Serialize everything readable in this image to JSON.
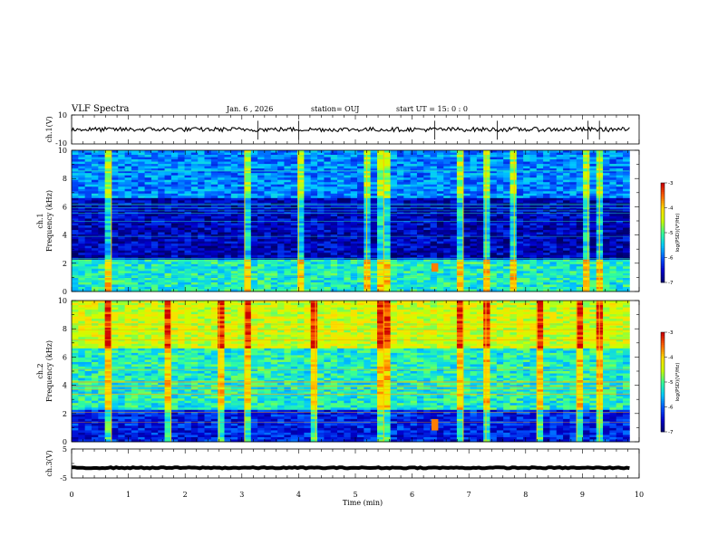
{
  "header": {
    "title": "VLF Spectra",
    "date": "Jan. 6 , 2026",
    "station": "station= OUJ",
    "start": "start UT = 15: 0 : 0"
  },
  "chart_data": [
    {
      "type": "line",
      "name": "ch1-waveform",
      "ylabel": "ch.1(V)",
      "ylim": [
        -10,
        10
      ],
      "ytick_labels": [
        "10",
        "-10"
      ],
      "xlim": [
        0,
        10
      ],
      "x_extent": [
        0,
        9.83
      ],
      "mean": 0,
      "approx_amplitude": 1.5,
      "spike_times": [
        3.28,
        4.0,
        6.4,
        7.5,
        9.1,
        9.3
      ]
    },
    {
      "type": "heatmap",
      "name": "ch1-spectrogram",
      "ylabel": "ch.1\nFrequency (kHz)",
      "ylim": [
        0,
        10
      ],
      "ytick_labels": [
        "0",
        "2",
        "4",
        "6",
        "8",
        "10"
      ],
      "xlim": [
        0,
        10
      ],
      "x_extent": [
        0,
        9.83
      ],
      "colorbar_label": "log(PSD)(V²/Hz)",
      "colorbar_range": [
        -7,
        -3
      ],
      "colorbar_ticks": [
        "-3",
        "-4",
        "-5",
        "-6",
        "-7"
      ],
      "approx_level_low_band": -5.2,
      "approx_level_mid_band": -6.6,
      "approx_level_high_band": -5.8,
      "bright_burst": {
        "t": 6.4,
        "f_range": [
          1.4,
          2.0
        ]
      },
      "sferic_times": [
        0.7,
        3.05,
        4.0,
        5.2,
        5.5,
        6.9,
        7.3,
        7.8,
        9.1,
        9.3
      ]
    },
    {
      "type": "heatmap",
      "name": "ch2-spectrogram",
      "ylabel": "ch.2\nFrequency (kHz)",
      "ylim": [
        0,
        10
      ],
      "ytick_labels": [
        "0",
        "2",
        "4",
        "6",
        "8",
        "10"
      ],
      "xlim": [
        0,
        10
      ],
      "x_extent": [
        0,
        9.83
      ],
      "colorbar_label": "log(PSD)(V²/Hz)",
      "colorbar_range": [
        -7,
        -3
      ],
      "colorbar_ticks": [
        "-3",
        "-4",
        "-5",
        "-6",
        "-7"
      ],
      "approx_level_low_band": -6.3,
      "approx_level_mid_band": -5.2,
      "approx_level_high_band": -4.4,
      "bright_burst": {
        "t": 6.4,
        "f_range": [
          0.8,
          1.6
        ]
      },
      "sferic_times": [
        0.7,
        1.75,
        2.6,
        3.05,
        4.3,
        5.5,
        6.9,
        7.3,
        8.2,
        8.9,
        9.3
      ]
    },
    {
      "type": "line",
      "name": "ch3-waveform",
      "ylabel": "ch.3(V)",
      "ylim": [
        -5,
        5
      ],
      "ytick_labels": [
        "5",
        "-5"
      ],
      "xlim": [
        0,
        10
      ],
      "x_extent": [
        0,
        9.83
      ],
      "mean": -1.5,
      "approx_amplitude": 0.2
    }
  ],
  "time_axis": {
    "label": "Time (min)",
    "tick_labels": [
      "0",
      "1",
      "2",
      "3",
      "4",
      "5",
      "6",
      "7",
      "8",
      "9",
      "10"
    ]
  },
  "colors": {
    "colormap": [
      "#000066",
      "#0000cc",
      "#0055ff",
      "#00c8ff",
      "#33ff99",
      "#ccff00",
      "#ffdd00",
      "#ff6600",
      "#cc0000"
    ],
    "line": "#000000"
  }
}
